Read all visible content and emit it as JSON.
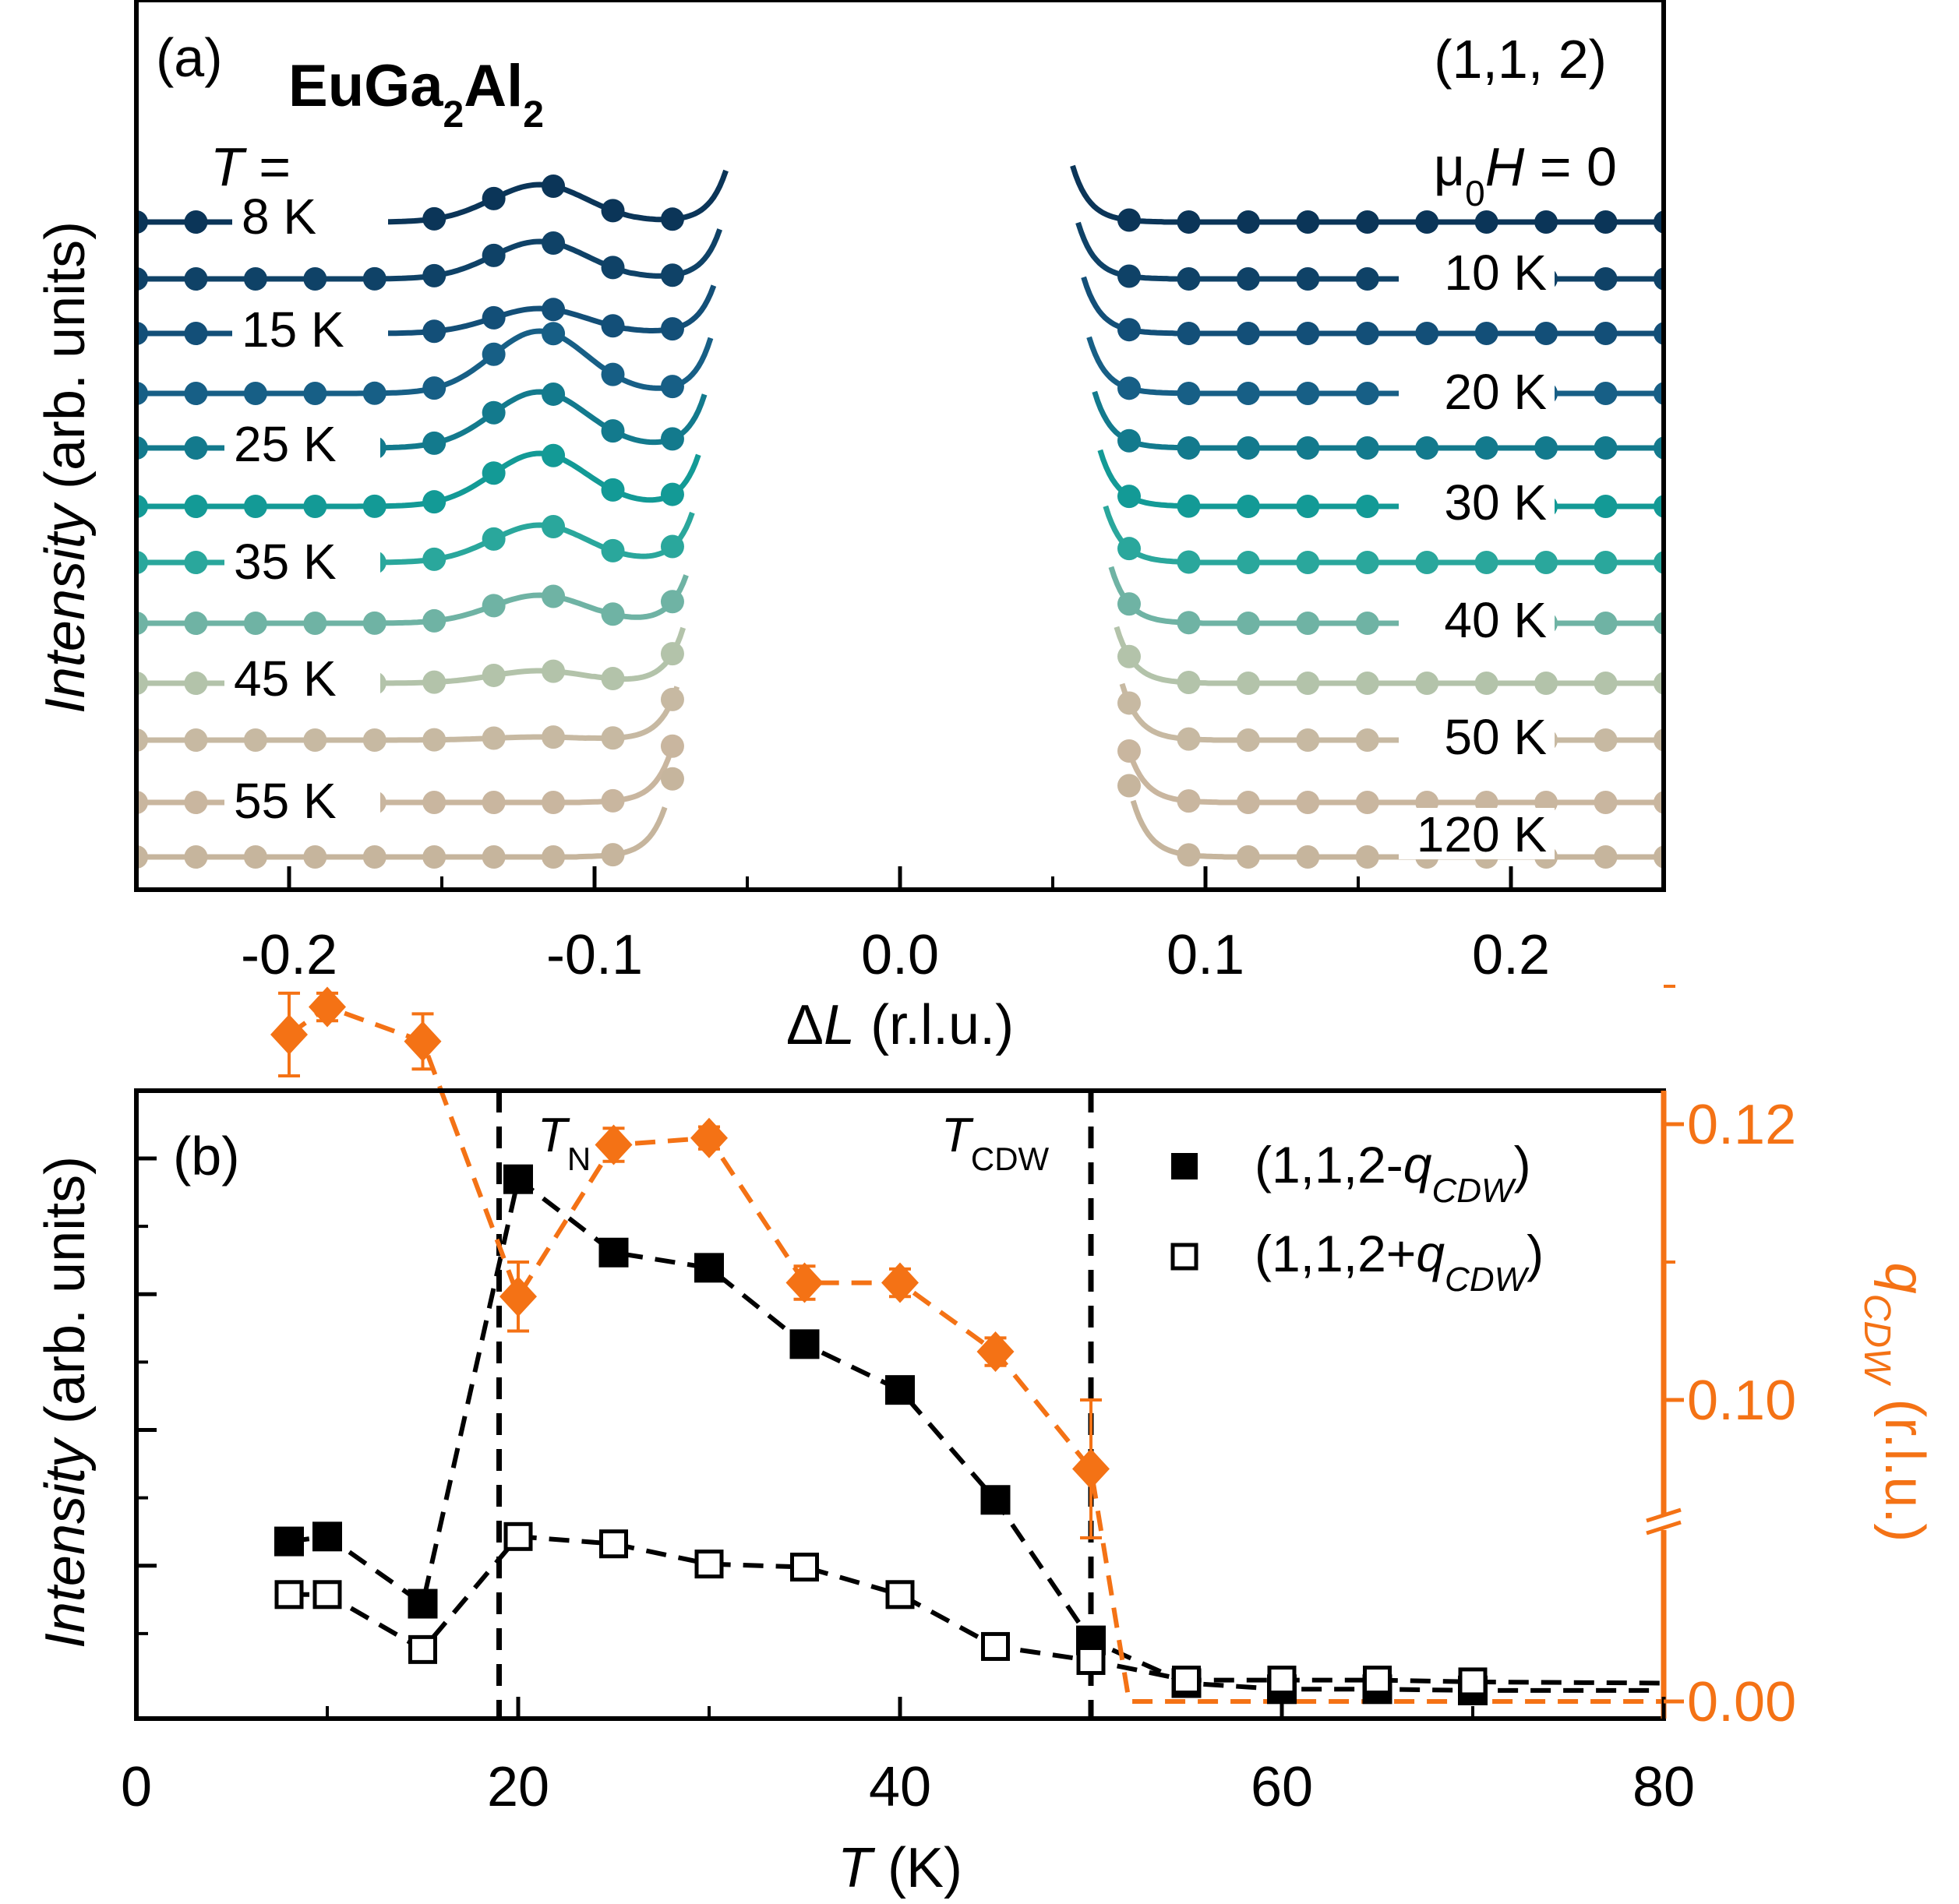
{
  "colors": {
    "axis": "#000000",
    "qcdw": "#f47215",
    "trace_palette": [
      "#0b3558",
      "#0f4267",
      "#134f78",
      "#175f86",
      "#137a8d",
      "#139a96",
      "#2aa79c",
      "#6fb3a4",
      "#b3c3aa",
      "#c7b9a2",
      "#c9b69f",
      "#c6b59d"
    ]
  },
  "panel_a": {
    "label": "(a)",
    "compound": {
      "base1": "EuGa",
      "sub1": "2",
      "base2": "Al",
      "sub2": "2"
    },
    "reflection": "(1,1, 2)",
    "field": {
      "mu": "μ",
      "sub": "0",
      "rest": "H",
      "eq": " = 0"
    },
    "temp_label": {
      "T": "T",
      "eq": " ="
    },
    "ylabel": {
      "italic": "Intensity",
      "rest": " (arb. units)"
    },
    "xlabel": {
      "delta": "Δ",
      "italic": "L",
      "rest": " (r.l.u.)"
    }
  },
  "panel_b": {
    "label": "(b)",
    "TN": {
      "main": "T",
      "sub": "N"
    },
    "TCDW": {
      "main": "T",
      "sub": "CDW"
    },
    "legend": [
      {
        "prefix": "(1,1,2-",
        "italic": "q",
        "sub": "CDW",
        "suffix": ")"
      },
      {
        "prefix": "(1,1,2+",
        "italic": "q",
        "sub": "CDW",
        "suffix": ")"
      }
    ],
    "ylabel": {
      "italic": "Intensity",
      "rest": " (arb. units)"
    },
    "xlabel": {
      "italic": "T",
      "rest": " (K)"
    },
    "y2label": {
      "italic": "q",
      "sub": "CDW",
      "rest": " (r.l.u.)"
    }
  },
  "chart_data": [
    {
      "type": "line",
      "title": "(a) EuGa2Al2 (1,1,2) μ0H = 0",
      "xlabel": "ΔL (r.l.u.)",
      "ylabel": "Intensity (arb. units)",
      "xlim": [
        -0.25,
        0.25
      ],
      "xticks": [
        -0.2,
        -0.1,
        0.0,
        0.1,
        0.2
      ],
      "xtick_labels": [
        "-0.2",
        "-0.1",
        "0.0",
        "0.1",
        "0.2"
      ],
      "note": "Traces offset vertically; each shows a CDW satellite peak near ΔL = -0.12 that fades with increasing T; Bragg peak at ΔL = 0 off-scale.",
      "series": [
        {
          "name": "8 K",
          "temperature_K": 8,
          "peak_amplitude": 0.6
        },
        {
          "name": "10 K",
          "temperature_K": 10,
          "peak_amplitude": 0.6
        },
        {
          "name": "15 K",
          "temperature_K": 15,
          "peak_amplitude": 0.4
        },
        {
          "name": "20 K",
          "temperature_K": 20,
          "peak_amplitude": 1.0
        },
        {
          "name": "25 K",
          "temperature_K": 25,
          "peak_amplitude": 0.9
        },
        {
          "name": "30 K",
          "temperature_K": 30,
          "peak_amplitude": 0.85
        },
        {
          "name": "35 K",
          "temperature_K": 35,
          "peak_amplitude": 0.6
        },
        {
          "name": "40 K",
          "temperature_K": 40,
          "peak_amplitude": 0.45
        },
        {
          "name": "45 K",
          "temperature_K": 45,
          "peak_amplitude": 0.2
        },
        {
          "name": "50 K",
          "temperature_K": 50,
          "peak_amplitude": 0.05
        },
        {
          "name": "55 K",
          "temperature_K": 55,
          "peak_amplitude": 0.0
        },
        {
          "name": "120 K",
          "temperature_K": 120,
          "peak_amplitude": 0.0
        }
      ]
    },
    {
      "type": "scatter",
      "title": "(b)",
      "xlabel": "T (K)",
      "ylabel": "Intensity (arb. units)",
      "y2label": "qCDW (r.l.u.)",
      "xlim": [
        0,
        80
      ],
      "xticks": [
        0,
        20,
        40,
        60,
        80
      ],
      "xtick_labels": [
        "0",
        "20",
        "40",
        "60",
        "80"
      ],
      "ylim": [
        0,
        1.0
      ],
      "y2ticks": [
        0.0,
        0.1,
        0.12
      ],
      "y2tick_labels": [
        "0.00",
        "0.10",
        "0.12"
      ],
      "y2_axis_break_between": [
        0.0,
        0.1
      ],
      "vlines": [
        {
          "x": 19,
          "label": "TN"
        },
        {
          "x": 50,
          "label": "TCDW"
        }
      ],
      "series": [
        {
          "name": "(1,1,2-qCDW)",
          "marker": "filled-square",
          "x": [
            8,
            10,
            15,
            20,
            25,
            30,
            35,
            40,
            45,
            50,
            55,
            60,
            65,
            70
          ],
          "y": [
            0.262,
            0.27,
            0.16,
            0.855,
            0.735,
            0.71,
            0.585,
            0.51,
            0.33,
            0.1,
            0.03,
            0.02,
            0.02,
            0.018
          ]
        },
        {
          "name": "(1,1,2+qCDW)",
          "marker": "open-square",
          "x": [
            8,
            10,
            15,
            20,
            25,
            30,
            35,
            40,
            45,
            50,
            55,
            60,
            65,
            70
          ],
          "y": [
            0.175,
            0.175,
            0.085,
            0.27,
            0.258,
            0.225,
            0.22,
            0.175,
            0.09,
            0.067,
            0.035,
            0.035,
            0.035,
            0.032
          ]
        },
        {
          "name": "qCDW",
          "axis": "right",
          "marker": "diamond",
          "color": "#f47215",
          "x": [
            8,
            10,
            15,
            20,
            25,
            30,
            35,
            40,
            45,
            50
          ],
          "y": [
            0.1265,
            0.1285,
            0.126,
            0.1075,
            0.1185,
            0.119,
            0.1085,
            0.1085,
            0.1035,
            0.095
          ],
          "yerr": [
            0.003,
            0.001,
            0.002,
            0.0025,
            0.0012,
            0.0008,
            0.0012,
            0.001,
            0.001,
            0.005
          ]
        }
      ]
    }
  ]
}
